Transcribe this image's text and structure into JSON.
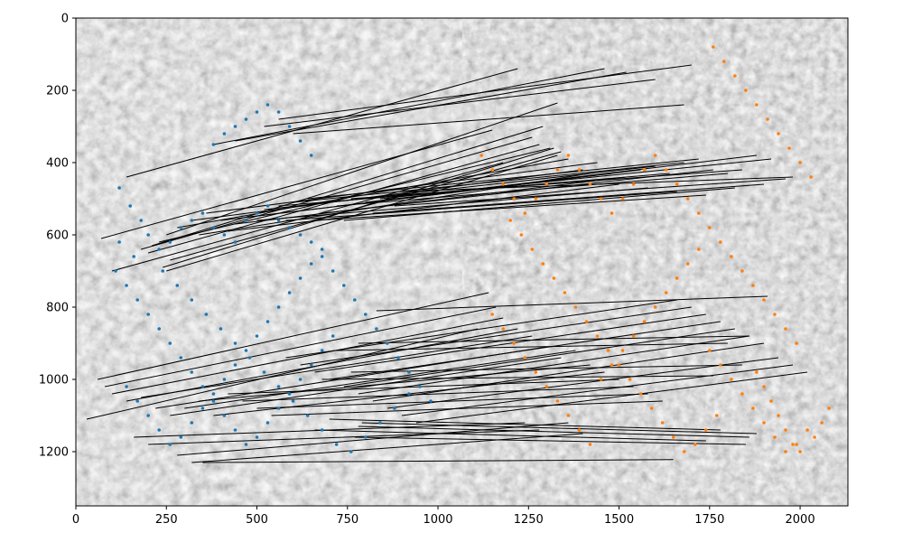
{
  "chart_data": {
    "type": "scatter",
    "title": "",
    "xlabel": "",
    "ylabel": "",
    "xlim": [
      0,
      2132
    ],
    "ylim": [
      1350,
      0
    ],
    "y_inverted": true,
    "grid": false,
    "legend": "none",
    "background": "side-by-side grayscale aerial images (left and right) with keypoint matches",
    "image_split_x": 1066,
    "x_ticks": [
      0,
      250,
      500,
      750,
      1000,
      1250,
      1500,
      1750,
      2000
    ],
    "y_ticks": [
      0,
      200,
      400,
      600,
      800,
      1000,
      1200
    ],
    "series": [
      {
        "color": "#1f77b4",
        "points": [
          [
            120,
            470
          ],
          [
            150,
            520
          ],
          [
            180,
            560
          ],
          [
            200,
            600
          ],
          [
            230,
            640
          ],
          [
            260,
            620
          ],
          [
            290,
            580
          ],
          [
            320,
            560
          ],
          [
            350,
            540
          ],
          [
            380,
            580
          ],
          [
            410,
            600
          ],
          [
            440,
            620
          ],
          [
            470,
            560
          ],
          [
            500,
            540
          ],
          [
            530,
            520
          ],
          [
            560,
            560
          ],
          [
            590,
            580
          ],
          [
            620,
            600
          ],
          [
            650,
            620
          ],
          [
            680,
            640
          ],
          [
            110,
            700
          ],
          [
            140,
            740
          ],
          [
            170,
            780
          ],
          [
            200,
            820
          ],
          [
            230,
            860
          ],
          [
            260,
            900
          ],
          [
            290,
            940
          ],
          [
            320,
            980
          ],
          [
            350,
            1020
          ],
          [
            380,
            1060
          ],
          [
            410,
            1000
          ],
          [
            440,
            960
          ],
          [
            470,
            920
          ],
          [
            500,
            880
          ],
          [
            530,
            840
          ],
          [
            560,
            800
          ],
          [
            590,
            760
          ],
          [
            620,
            720
          ],
          [
            650,
            680
          ],
          [
            680,
            660
          ],
          [
            710,
            700
          ],
          [
            740,
            740
          ],
          [
            770,
            780
          ],
          [
            800,
            820
          ],
          [
            830,
            860
          ],
          [
            860,
            900
          ],
          [
            890,
            940
          ],
          [
            920,
            980
          ],
          [
            950,
            1020
          ],
          [
            980,
            1060
          ],
          [
            140,
            1020
          ],
          [
            170,
            1060
          ],
          [
            200,
            1100
          ],
          [
            230,
            1140
          ],
          [
            260,
            1180
          ],
          [
            290,
            1160
          ],
          [
            320,
            1120
          ],
          [
            350,
            1080
          ],
          [
            380,
            1040
          ],
          [
            410,
            1100
          ],
          [
            440,
            1140
          ],
          [
            470,
            1180
          ],
          [
            500,
            1160
          ],
          [
            530,
            1120
          ],
          [
            560,
            1080
          ],
          [
            590,
            1040
          ],
          [
            620,
            1000
          ],
          [
            650,
            960
          ],
          [
            680,
            920
          ],
          [
            710,
            880
          ],
          [
            380,
            350
          ],
          [
            410,
            320
          ],
          [
            440,
            300
          ],
          [
            470,
            280
          ],
          [
            500,
            260
          ],
          [
            530,
            240
          ],
          [
            560,
            260
          ],
          [
            590,
            300
          ],
          [
            620,
            340
          ],
          [
            650,
            380
          ],
          [
            120,
            620
          ],
          [
            160,
            660
          ],
          [
            240,
            700
          ],
          [
            280,
            740
          ],
          [
            320,
            780
          ],
          [
            360,
            820
          ],
          [
            400,
            860
          ],
          [
            440,
            900
          ],
          [
            480,
            940
          ],
          [
            520,
            980
          ],
          [
            560,
            1020
          ],
          [
            600,
            1060
          ],
          [
            640,
            1100
          ],
          [
            680,
            1140
          ],
          [
            720,
            1180
          ],
          [
            760,
            1200
          ],
          [
            800,
            1160
          ],
          [
            840,
            1120
          ],
          [
            880,
            1080
          ],
          [
            920,
            1040
          ]
        ]
      },
      {
        "color": "#ff7f0e",
        "points": [
          [
            1120,
            380
          ],
          [
            1150,
            420
          ],
          [
            1180,
            460
          ],
          [
            1210,
            500
          ],
          [
            1240,
            540
          ],
          [
            1270,
            500
          ],
          [
            1300,
            460
          ],
          [
            1330,
            420
          ],
          [
            1360,
            380
          ],
          [
            1390,
            420
          ],
          [
            1420,
            460
          ],
          [
            1450,
            500
          ],
          [
            1480,
            540
          ],
          [
            1510,
            500
          ],
          [
            1540,
            460
          ],
          [
            1570,
            420
          ],
          [
            1600,
            380
          ],
          [
            1630,
            420
          ],
          [
            1660,
            460
          ],
          [
            1690,
            500
          ],
          [
            1720,
            540
          ],
          [
            1750,
            580
          ],
          [
            1780,
            620
          ],
          [
            1810,
            660
          ],
          [
            1840,
            700
          ],
          [
            1870,
            740
          ],
          [
            1900,
            780
          ],
          [
            1930,
            820
          ],
          [
            1960,
            860
          ],
          [
            1990,
            900
          ],
          [
            1150,
            820
          ],
          [
            1180,
            860
          ],
          [
            1210,
            900
          ],
          [
            1240,
            940
          ],
          [
            1270,
            980
          ],
          [
            1300,
            1020
          ],
          [
            1330,
            1060
          ],
          [
            1360,
            1100
          ],
          [
            1390,
            1140
          ],
          [
            1420,
            1180
          ],
          [
            1450,
            1000
          ],
          [
            1480,
            960
          ],
          [
            1510,
            920
          ],
          [
            1540,
            880
          ],
          [
            1570,
            840
          ],
          [
            1600,
            800
          ],
          [
            1630,
            760
          ],
          [
            1660,
            720
          ],
          [
            1690,
            680
          ],
          [
            1720,
            640
          ],
          [
            1750,
            920
          ],
          [
            1780,
            960
          ],
          [
            1810,
            1000
          ],
          [
            1840,
            1040
          ],
          [
            1870,
            1080
          ],
          [
            1900,
            1120
          ],
          [
            1930,
            1160
          ],
          [
            1960,
            1200
          ],
          [
            1990,
            1180
          ],
          [
            2020,
            1140
          ],
          [
            1760,
            80
          ],
          [
            1790,
            120
          ],
          [
            1820,
            160
          ],
          [
            1850,
            200
          ],
          [
            1880,
            240
          ],
          [
            1910,
            280
          ],
          [
            1940,
            320
          ],
          [
            1970,
            360
          ],
          [
            2000,
            400
          ],
          [
            2030,
            440
          ],
          [
            1200,
            560
          ],
          [
            1230,
            600
          ],
          [
            1260,
            640
          ],
          [
            1290,
            680
          ],
          [
            1320,
            720
          ],
          [
            1350,
            760
          ],
          [
            1380,
            800
          ],
          [
            1410,
            840
          ],
          [
            1440,
            880
          ],
          [
            1470,
            920
          ],
          [
            1500,
            960
          ],
          [
            1530,
            1000
          ],
          [
            1560,
            1040
          ],
          [
            1590,
            1080
          ],
          [
            1620,
            1120
          ],
          [
            1650,
            1160
          ],
          [
            1680,
            1200
          ],
          [
            1710,
            1180
          ],
          [
            1740,
            1140
          ],
          [
            1770,
            1100
          ],
          [
            1880,
            980
          ],
          [
            1900,
            1020
          ],
          [
            1920,
            1060
          ],
          [
            1940,
            1100
          ],
          [
            1960,
            1140
          ],
          [
            1980,
            1180
          ],
          [
            2000,
            1200
          ],
          [
            2040,
            1160
          ],
          [
            2060,
            1120
          ],
          [
            2080,
            1080
          ]
        ]
      }
    ],
    "match_lines": {
      "color": "#000000",
      "segments": [
        [
          140,
          440,
          1220,
          140
        ],
        [
          250,
          600,
          1330,
          235
        ],
        [
          70,
          610,
          1150,
          310
        ],
        [
          100,
          700,
          1180,
          400
        ],
        [
          180,
          640,
          1260,
          330
        ],
        [
          250,
          700,
          1330,
          380
        ],
        [
          210,
          630,
          1290,
          300
        ],
        [
          230,
          620,
          1310,
          360
        ],
        [
          280,
          580,
          1360,
          390
        ],
        [
          320,
          560,
          1400,
          420
        ],
        [
          360,
          540,
          1440,
          400
        ],
        [
          400,
          560,
          1480,
          430
        ],
        [
          440,
          570,
          1520,
          440
        ],
        [
          480,
          550,
          1560,
          420
        ],
        [
          520,
          530,
          1600,
          410
        ],
        [
          560,
          520,
          1640,
          430
        ],
        [
          600,
          510,
          1680,
          400
        ],
        [
          640,
          500,
          1720,
          390
        ],
        [
          680,
          540,
          1760,
          420
        ],
        [
          720,
          520,
          1800,
          430
        ],
        [
          760,
          500,
          1840,
          420
        ],
        [
          800,
          510,
          1880,
          380
        ],
        [
          840,
          500,
          1920,
          390
        ],
        [
          880,
          520,
          1960,
          445
        ],
        [
          900,
          480,
          1980,
          440
        ],
        [
          240,
          690,
          1320,
          360
        ],
        [
          260,
          670,
          1340,
          370
        ],
        [
          200,
          650,
          1280,
          350
        ],
        [
          340,
          600,
          1420,
          430
        ],
        [
          420,
          590,
          1500,
          460
        ],
        [
          500,
          560,
          1580,
          470
        ],
        [
          580,
          560,
          1660,
          480
        ],
        [
          660,
          560,
          1740,
          490
        ],
        [
          740,
          560,
          1820,
          470
        ],
        [
          820,
          540,
          1900,
          460
        ],
        [
          380,
          350,
          1460,
          140
        ],
        [
          440,
          340,
          1520,
          150
        ],
        [
          520,
          300,
          1600,
          170
        ],
        [
          560,
          280,
          1700,
          130
        ],
        [
          600,
          320,
          1680,
          240
        ],
        [
          60,
          1000,
          1140,
          760
        ],
        [
          80,
          1020,
          1160,
          800
        ],
        [
          100,
          1040,
          1180,
          830
        ],
        [
          140,
          1060,
          1220,
          860
        ],
        [
          180,
          1050,
          1260,
          880
        ],
        [
          220,
          1080,
          1300,
          910
        ],
        [
          260,
          1100,
          1340,
          940
        ],
        [
          300,
          1080,
          1380,
          920
        ],
        [
          340,
          1060,
          1420,
          960
        ],
        [
          380,
          1100,
          1460,
          980
        ],
        [
          30,
          1110,
          1110,
          860
        ],
        [
          420,
          1040,
          1500,
          1000
        ],
        [
          460,
          1060,
          1540,
          1020
        ],
        [
          500,
          1080,
          1580,
          1040
        ],
        [
          540,
          1100,
          1620,
          1060
        ],
        [
          580,
          940,
          1660,
          780
        ],
        [
          620,
          960,
          1700,
          800
        ],
        [
          660,
          980,
          1740,
          820
        ],
        [
          700,
          1000,
          1780,
          840
        ],
        [
          740,
          1020,
          1820,
          860
        ],
        [
          780,
          1040,
          1860,
          880
        ],
        [
          820,
          1060,
          1900,
          900
        ],
        [
          860,
          1080,
          1940,
          940
        ],
        [
          900,
          1100,
          1980,
          960
        ],
        [
          940,
          1120,
          2020,
          980
        ],
        [
          160,
          1160,
          1240,
          1120
        ],
        [
          200,
          1180,
          1280,
          1140
        ],
        [
          280,
          1210,
          1360,
          1120
        ],
        [
          320,
          1230,
          1400,
          1150
        ],
        [
          350,
          1230,
          1650,
          1222
        ],
        [
          790,
          1120,
          1880,
          1150
        ],
        [
          770,
          1160,
          1850,
          1180
        ],
        [
          780,
          1130,
          1860,
          1160
        ],
        [
          660,
          1140,
          1740,
          1170
        ],
        [
          700,
          1110,
          1780,
          1140
        ],
        [
          830,
          810,
          1910,
          770
        ],
        [
          780,
          900,
          1860,
          880
        ],
        [
          720,
          920,
          1800,
          900
        ],
        [
          760,
          980,
          1840,
          960
        ],
        [
          680,
          1000,
          1760,
          990
        ]
      ]
    }
  }
}
